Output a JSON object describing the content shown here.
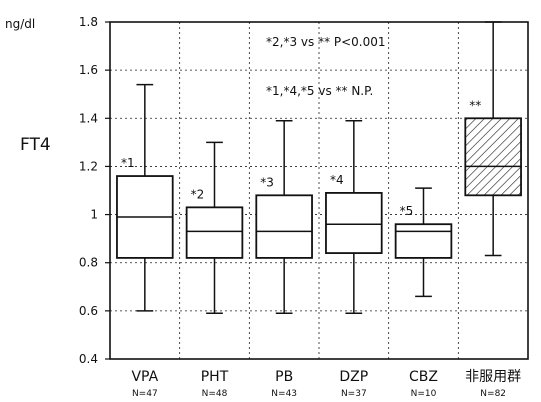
{
  "chart_data": {
    "type": "boxplot",
    "unit_label": "ng/dl",
    "ylabel": "FT4",
    "ylim": [
      0.4,
      1.8
    ],
    "yticks": [
      "1.8",
      "1.6",
      "1.4",
      "1.2",
      "1",
      "0.8",
      "0.6",
      "0.4"
    ],
    "grid": true,
    "annotations": [
      "*2,*3 vs ** P<0.001",
      "*1,*4,*5 vs **  N.P."
    ],
    "groups": [
      {
        "label": "VPA",
        "n_label": "N=47",
        "marker": "*1",
        "min": 0.6,
        "q1": 0.82,
        "median": 0.99,
        "q3": 1.16,
        "max": 1.54,
        "hatched": false
      },
      {
        "label": "PHT",
        "n_label": "N=48",
        "marker": "*2",
        "min": 0.59,
        "q1": 0.82,
        "median": 0.93,
        "q3": 1.03,
        "max": 1.3,
        "hatched": false
      },
      {
        "label": "PB",
        "n_label": "N=43",
        "marker": "*3",
        "min": 0.59,
        "q1": 0.82,
        "median": 0.93,
        "q3": 1.08,
        "max": 1.39,
        "hatched": false
      },
      {
        "label": "DZP",
        "n_label": "N=37",
        "marker": "*4",
        "min": 0.59,
        "q1": 0.84,
        "median": 0.96,
        "q3": 1.09,
        "max": 1.39,
        "hatched": false
      },
      {
        "label": "CBZ",
        "n_label": "N=10",
        "marker": "*5",
        "min": 0.66,
        "q1": 0.82,
        "median": 0.93,
        "q3": 0.96,
        "max": 1.11,
        "hatched": false
      },
      {
        "label": "非服用群",
        "n_label": "N=82",
        "marker": "**",
        "min": 0.83,
        "q1": 1.08,
        "median": 1.2,
        "q3": 1.4,
        "max": 1.8,
        "hatched": true
      }
    ]
  }
}
